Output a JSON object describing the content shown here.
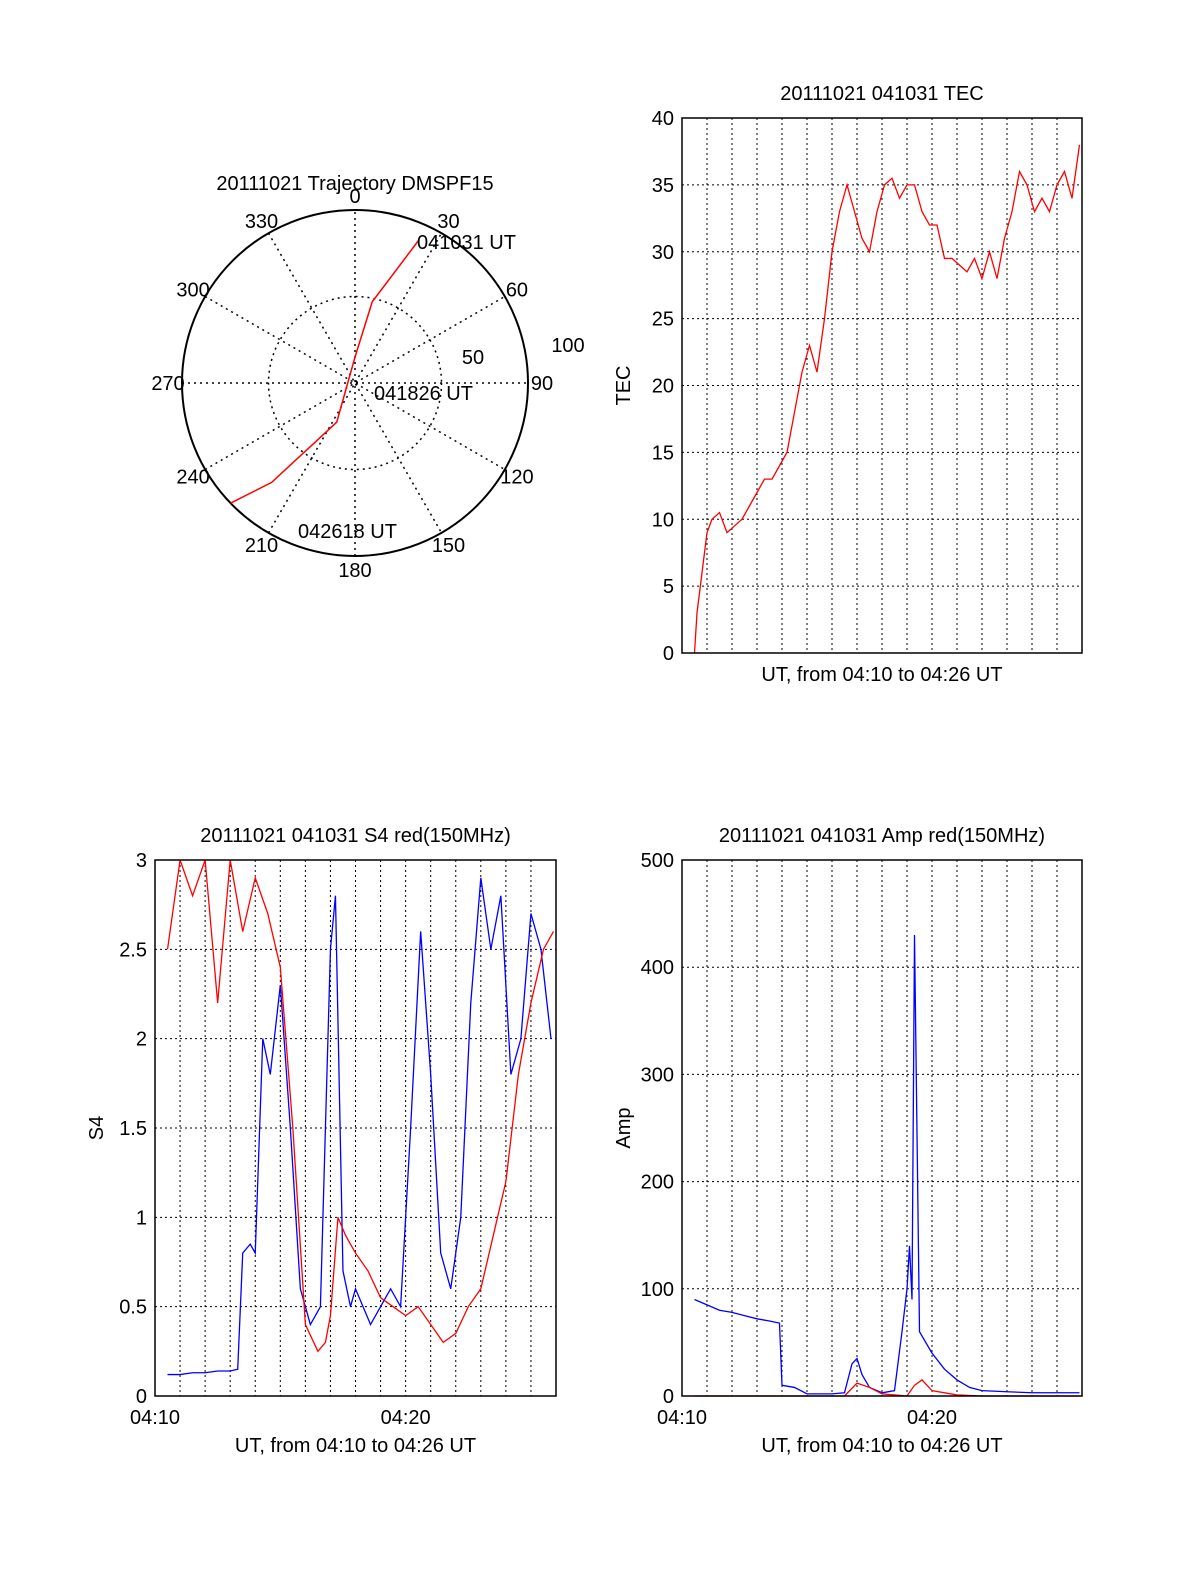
{
  "colors": {
    "red": "#ff0000",
    "blue": "#0000ff",
    "axis": "#000000"
  },
  "chart_data": [
    {
      "type": "polar",
      "title": "20111021 Trajectory DMSPF15",
      "angle_labels": [
        "0",
        "30",
        "60",
        "90",
        "120",
        "150",
        "180",
        "210",
        "240",
        "270",
        "300",
        "330"
      ],
      "radius_labels": [
        "50",
        "100"
      ],
      "series": [
        {
          "values": [
            [
              24,
              90
            ],
            [
              12,
              48
            ],
            [
              0,
              15
            ],
            [
              205,
              25
            ],
            [
              220,
              75
            ],
            [
              226,
              100
            ]
          ]
        }
      ],
      "annotations": [
        "041031 UT",
        "041826 UT",
        "042618 UT"
      ]
    },
    {
      "type": "line",
      "title": "20111021 041031 TEC",
      "xlabel": "UT, from 04:10 to 04:26 UT",
      "ylabel": "TEC",
      "xlim": [
        0,
        16
      ],
      "ylim": [
        0,
        40
      ],
      "yticks": [
        "0",
        "5",
        "10",
        "15",
        "20",
        "25",
        "30",
        "35",
        "40"
      ],
      "series": [
        {
          "color": "red",
          "x": [
            0.5,
            0.6,
            0.8,
            1.0,
            1.2,
            1.5,
            1.8,
            2.1,
            2.4,
            2.7,
            3.0,
            3.3,
            3.6,
            3.9,
            4.2,
            4.5,
            4.8,
            5.1,
            5.4,
            5.7,
            6.0,
            6.3,
            6.6,
            6.9,
            7.2,
            7.5,
            7.8,
            8.1,
            8.4,
            8.7,
            9.0,
            9.3,
            9.6,
            9.9,
            10.2,
            10.5,
            10.8,
            11.1,
            11.4,
            11.7,
            12.0,
            12.3,
            12.6,
            12.9,
            13.2,
            13.5,
            13.8,
            14.1,
            14.4,
            14.7,
            15.0,
            15.3,
            15.6,
            15.9
          ],
          "values": [
            0,
            3,
            6,
            9,
            10,
            10.5,
            9,
            9.5,
            10,
            11,
            12,
            13,
            13,
            14,
            15,
            18,
            21,
            23,
            21,
            25,
            30,
            33,
            35,
            33,
            31,
            30,
            33,
            35,
            35.5,
            34,
            35,
            35,
            33,
            32,
            32,
            29.5,
            29.5,
            29,
            28.5,
            29.5,
            28,
            30,
            28,
            31,
            33,
            36,
            35,
            33,
            34,
            33,
            35,
            36,
            34,
            38
          ]
        }
      ]
    },
    {
      "type": "line",
      "title": "20111021 041031 S4 red(150MHz)",
      "xlabel": "UT, from 04:10 to 04:26 UT",
      "ylabel": "S4",
      "xlim": [
        0,
        16
      ],
      "ylim": [
        0,
        3
      ],
      "xticks": [
        "04:10",
        "04:20"
      ],
      "yticks": [
        "0",
        "0.5",
        "1",
        "1.5",
        "2",
        "2.5",
        "3"
      ],
      "series": [
        {
          "color": "blue",
          "x": [
            0.5,
            1.0,
            1.5,
            2.0,
            2.5,
            3.0,
            3.3,
            3.5,
            3.8,
            4.0,
            4.3,
            4.6,
            5.0,
            5.4,
            5.8,
            6.2,
            6.6,
            7.0,
            7.2,
            7.5,
            7.8,
            8.0,
            8.3,
            8.6,
            9.0,
            9.4,
            9.8,
            10.2,
            10.6,
            11.0,
            11.4,
            11.8,
            12.2,
            12.6,
            13.0,
            13.4,
            13.8,
            14.2,
            14.6,
            15.0,
            15.4,
            15.8
          ],
          "values": [
            0.12,
            0.12,
            0.13,
            0.13,
            0.14,
            0.14,
            0.15,
            0.8,
            0.85,
            0.8,
            2.0,
            1.8,
            2.3,
            1.5,
            0.6,
            0.4,
            0.5,
            2.5,
            2.8,
            0.7,
            0.5,
            0.6,
            0.5,
            0.4,
            0.5,
            0.6,
            0.5,
            1.5,
            2.6,
            1.8,
            0.8,
            0.6,
            1.0,
            2.2,
            2.9,
            2.5,
            2.8,
            1.8,
            2.0,
            2.7,
            2.5,
            2.0
          ]
        },
        {
          "color": "red",
          "x": [
            0.5,
            1.0,
            1.5,
            2.0,
            2.5,
            3.0,
            3.5,
            4.0,
            4.5,
            5.0,
            5.5,
            6.0,
            6.5,
            6.8,
            7.0,
            7.3,
            7.6,
            8.0,
            8.5,
            9.0,
            9.5,
            10.0,
            10.5,
            11.0,
            11.5,
            12.0,
            12.5,
            13.0,
            13.5,
            14.0,
            14.5,
            15.0,
            15.5,
            15.9
          ],
          "values": [
            2.5,
            3.0,
            2.8,
            3.0,
            2.2,
            3.0,
            2.6,
            2.9,
            2.7,
            2.4,
            1.5,
            0.4,
            0.25,
            0.3,
            0.45,
            1.0,
            0.9,
            0.8,
            0.7,
            0.55,
            0.5,
            0.45,
            0.5,
            0.4,
            0.3,
            0.35,
            0.5,
            0.6,
            0.9,
            1.2,
            1.8,
            2.2,
            2.5,
            2.6
          ]
        }
      ]
    },
    {
      "type": "line",
      "title": "20111021 041031 Amp red(150MHz)",
      "xlabel": "UT, from 04:10 to 04:26 UT",
      "ylabel": "Amp",
      "xlim": [
        0,
        16
      ],
      "ylim": [
        0,
        500
      ],
      "xticks": [
        "04:10",
        "04:20"
      ],
      "yticks": [
        "0",
        "100",
        "200",
        "300",
        "400",
        "500"
      ],
      "series": [
        {
          "color": "blue",
          "x": [
            0.5,
            1.0,
            1.5,
            2.0,
            2.5,
            3.0,
            3.5,
            3.9,
            4.0,
            4.5,
            5.0,
            5.5,
            6.0,
            6.5,
            6.8,
            7.0,
            7.2,
            7.5,
            8.0,
            8.5,
            8.8,
            9.0,
            9.1,
            9.2,
            9.3,
            9.5,
            10.0,
            10.5,
            11.0,
            11.5,
            12.0,
            13.0,
            14.0,
            15.0,
            15.9
          ],
          "values": [
            90,
            85,
            80,
            78,
            75,
            72,
            70,
            68,
            10,
            8,
            2,
            2,
            2,
            3,
            30,
            35,
            20,
            8,
            3,
            5,
            60,
            100,
            140,
            90,
            430,
            60,
            40,
            25,
            15,
            8,
            5,
            4,
            3,
            3,
            3
          ]
        },
        {
          "color": "red",
          "x": [
            0.5,
            2.0,
            4.0,
            6.5,
            7.0,
            7.5,
            8.0,
            9.0,
            9.3,
            9.6,
            10.0,
            11.0,
            12.0,
            14.0,
            15.9
          ],
          "values": [
            0,
            0,
            0,
            0,
            12,
            8,
            2,
            0,
            10,
            15,
            5,
            1,
            0,
            0,
            0
          ]
        }
      ]
    }
  ]
}
